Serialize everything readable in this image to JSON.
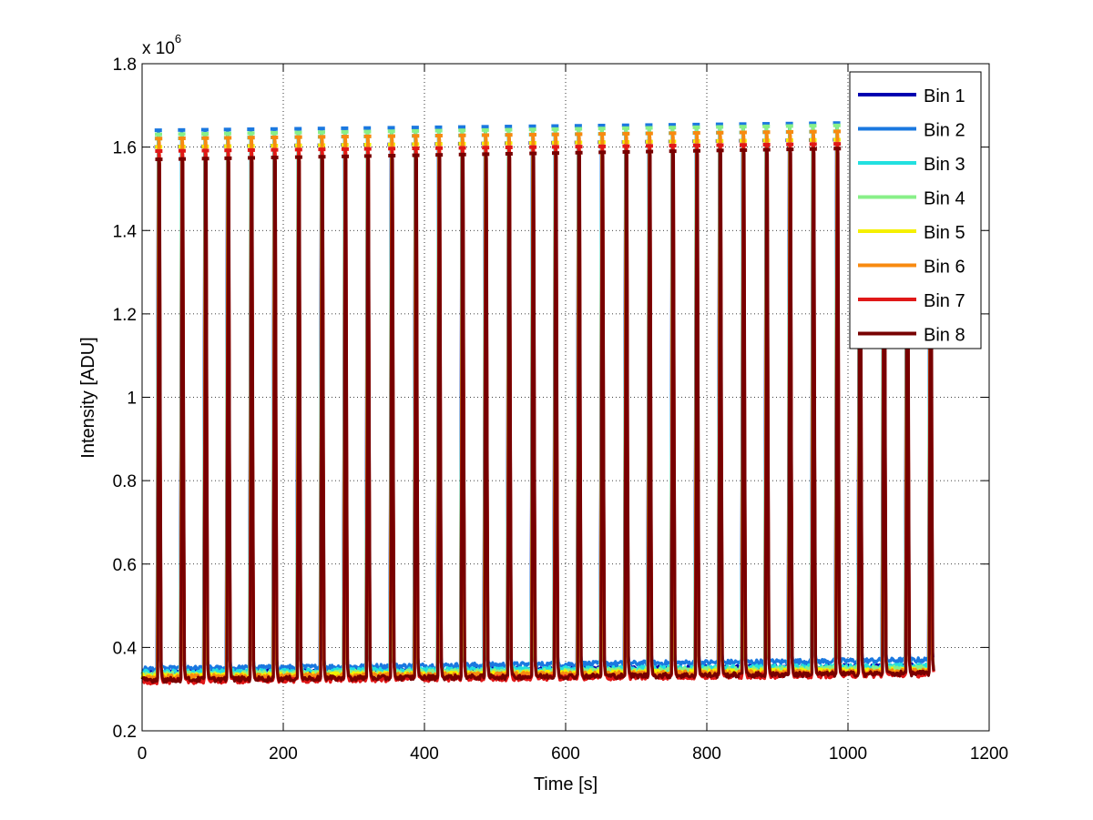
{
  "chart_data": {
    "type": "line",
    "title": "",
    "xlabel": "Time [s]",
    "ylabel": "Intensity [ADU]",
    "xlim": [
      0,
      1200
    ],
    "ylim": [
      0.2,
      1.8
    ],
    "y_multiplier": {
      "base": "x 10",
      "exponent": "6"
    },
    "xticks": [
      "0",
      "200",
      "400",
      "600",
      "800",
      "1000",
      "1200"
    ],
    "yticks": [
      "0.2",
      "0.4",
      "0.6",
      "0.8",
      "1",
      "1.2",
      "1.4",
      "1.6",
      "1.8"
    ],
    "grid": true,
    "legend_position": "top-right",
    "pulse_times": [
      24,
      57,
      90,
      122,
      155,
      188,
      222,
      255,
      288,
      320,
      354,
      388,
      421,
      454,
      487,
      520,
      554,
      586,
      619,
      652,
      686,
      719,
      752,
      786,
      819,
      852,
      885,
      918,
      951,
      985,
      1017,
      1051,
      1084,
      1117
    ],
    "time_end": 1120,
    "series": [
      {
        "name": "Bin 1",
        "color": "#0000b0",
        "peak": [
          1.6,
          1.62
        ],
        "baseline": [
          0.34,
          0.355
        ]
      },
      {
        "name": "Bin 2",
        "color": "#1a78e0",
        "peak": [
          1.64,
          1.66
        ],
        "baseline": [
          0.348,
          0.37
        ]
      },
      {
        "name": "Bin 3",
        "color": "#22e0e0",
        "peak": [
          1.62,
          1.64
        ],
        "baseline": [
          0.34,
          0.355
        ]
      },
      {
        "name": "Bin 4",
        "color": "#88f088",
        "peak": [
          1.63,
          1.655
        ],
        "baseline": [
          0.335,
          0.35
        ]
      },
      {
        "name": "Bin 5",
        "color": "#f5f000",
        "peak": [
          1.6,
          1.62
        ],
        "baseline": [
          0.33,
          0.345
        ]
      },
      {
        "name": "Bin 6",
        "color": "#f88a10",
        "peak": [
          1.62,
          1.64
        ],
        "baseline": [
          0.328,
          0.342
        ]
      },
      {
        "name": "Bin 7",
        "color": "#e01818",
        "peak": [
          1.59,
          1.61
        ],
        "baseline": [
          0.318,
          0.335
        ]
      },
      {
        "name": "Bin 8",
        "color": "#780000",
        "peak": [
          1.57,
          1.6
        ],
        "baseline": [
          0.322,
          0.338
        ]
      }
    ]
  }
}
